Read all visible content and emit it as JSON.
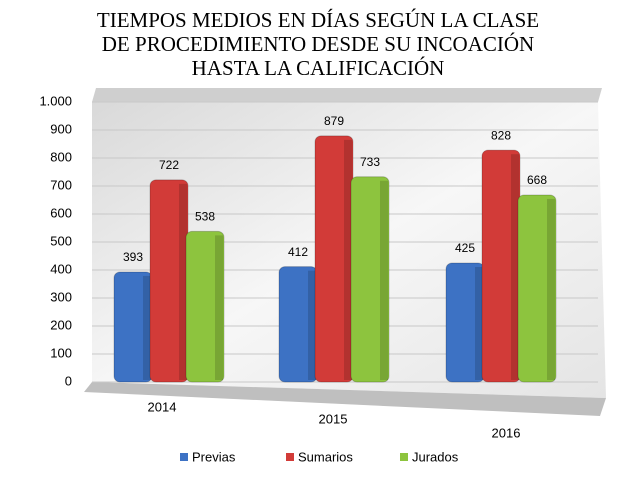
{
  "chart_data": {
    "type": "bar",
    "title": [
      "TIEMPOS MEDIOS EN DÍAS SEGÚN LA CLASE",
      "DE PROCEDIMIENTO DESDE SU INCOACIÓN",
      "HASTA LA CALIFICACIÓN"
    ],
    "categories": [
      "2014",
      "2015",
      "2016"
    ],
    "series": [
      {
        "name": "Previas",
        "color": "#3d72c4",
        "values": [
          393,
          412,
          425
        ]
      },
      {
        "name": "Sumarios",
        "color": "#d23b38",
        "values": [
          722,
          879,
          828
        ]
      },
      {
        "name": "Jurados",
        "color": "#8dc43e",
        "values": [
          538,
          733,
          668
        ]
      }
    ],
    "ylim": [
      0,
      1000
    ],
    "yticks": [
      0,
      100,
      200,
      300,
      400,
      500,
      600,
      700,
      800,
      900,
      {
        "value": 1000,
        "label": "1.000"
      }
    ],
    "grid": true
  }
}
